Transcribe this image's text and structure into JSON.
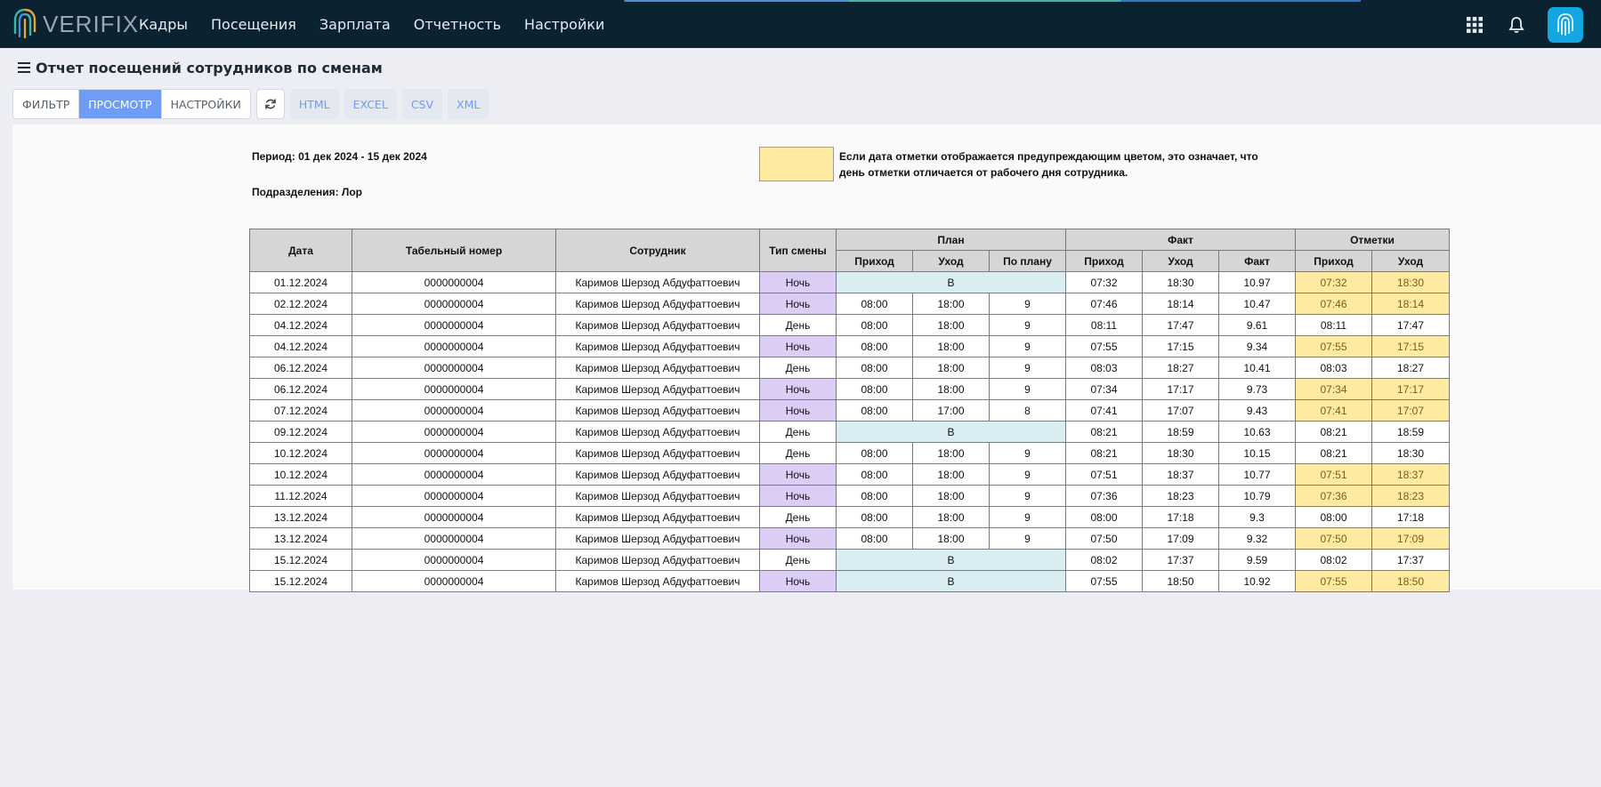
{
  "app": {
    "logo_text": "VERIFIX",
    "nav": [
      "Кадры",
      "Посещения",
      "Зарплата",
      "Отчетность",
      "Настройки"
    ],
    "icons": [
      "apps-grid-icon",
      "bell-icon",
      "fingerprint-icon"
    ]
  },
  "page": {
    "title": "Отчет посещений сотрудников по сменам",
    "tabs": [
      "ФИЛЬТР",
      "ПРОСМОТР",
      "НАСТРОЙКИ"
    ],
    "active_tab": "ПРОСМОТР",
    "exports": [
      "HTML",
      "EXCEL",
      "CSV",
      "XML"
    ]
  },
  "report": {
    "period": "Период: 01 дек 2024 - 15 дек 2024",
    "department": "Подразделения: Лор",
    "legend_text": "Если дата отметки отображается предупреждающим цветом, это означает, что день отметки отличается от рабочего дня сотрудника.",
    "colors": {
      "warning": "#ffeaa1",
      "night_shift": "#dccdf7",
      "day_off": "#d9edf3",
      "header": "#d6d6d6"
    },
    "headers": {
      "date": "Дата",
      "tab_number": "Табельный номер",
      "employee": "Сотрудник",
      "shift_type": "Тип смены",
      "plan": "План",
      "fact": "Факт",
      "marks": "Отметки",
      "in": "Приход",
      "out": "Уход",
      "planned": "По плану",
      "fact_hours": "Факт"
    },
    "rows": [
      {
        "date": "01.12.2024",
        "tab": "0000000004",
        "emp": "Каримов Шерзод Абдуфаттоевич",
        "shift": "Ночь",
        "plan_in": "",
        "plan_out": "",
        "plan_hours": "",
        "off": "В",
        "fact_in": "07:32",
        "fact_out": "18:30",
        "fact_hours": "10.97",
        "mark_in": "07:32",
        "mark_out": "18:30",
        "warn": true
      },
      {
        "date": "02.12.2024",
        "tab": "0000000004",
        "emp": "Каримов Шерзод Абдуфаттоевич",
        "shift": "Ночь",
        "plan_in": "08:00",
        "plan_out": "18:00",
        "plan_hours": "9",
        "off": "",
        "fact_in": "07:46",
        "fact_out": "18:14",
        "fact_hours": "10.47",
        "mark_in": "07:46",
        "mark_out": "18:14",
        "warn": true
      },
      {
        "date": "04.12.2024",
        "tab": "0000000004",
        "emp": "Каримов Шерзод Абдуфаттоевич",
        "shift": "День",
        "plan_in": "08:00",
        "plan_out": "18:00",
        "plan_hours": "9",
        "off": "",
        "fact_in": "08:11",
        "fact_out": "17:47",
        "fact_hours": "9.61",
        "mark_in": "08:11",
        "mark_out": "17:47",
        "warn": false
      },
      {
        "date": "04.12.2024",
        "tab": "0000000004",
        "emp": "Каримов Шерзод Абдуфаттоевич",
        "shift": "Ночь",
        "plan_in": "08:00",
        "plan_out": "18:00",
        "plan_hours": "9",
        "off": "",
        "fact_in": "07:55",
        "fact_out": "17:15",
        "fact_hours": "9.34",
        "mark_in": "07:55",
        "mark_out": "17:15",
        "warn": true
      },
      {
        "date": "06.12.2024",
        "tab": "0000000004",
        "emp": "Каримов Шерзод Абдуфаттоевич",
        "shift": "День",
        "plan_in": "08:00",
        "plan_out": "18:00",
        "plan_hours": "9",
        "off": "",
        "fact_in": "08:03",
        "fact_out": "18:27",
        "fact_hours": "10.41",
        "mark_in": "08:03",
        "mark_out": "18:27",
        "warn": false
      },
      {
        "date": "06.12.2024",
        "tab": "0000000004",
        "emp": "Каримов Шерзод Абдуфаттоевич",
        "shift": "Ночь",
        "plan_in": "08:00",
        "plan_out": "18:00",
        "plan_hours": "9",
        "off": "",
        "fact_in": "07:34",
        "fact_out": "17:17",
        "fact_hours": "9.73",
        "mark_in": "07:34",
        "mark_out": "17:17",
        "warn": true
      },
      {
        "date": "07.12.2024",
        "tab": "0000000004",
        "emp": "Каримов Шерзод Абдуфаттоевич",
        "shift": "Ночь",
        "plan_in": "08:00",
        "plan_out": "17:00",
        "plan_hours": "8",
        "off": "",
        "fact_in": "07:41",
        "fact_out": "17:07",
        "fact_hours": "9.43",
        "mark_in": "07:41",
        "mark_out": "17:07",
        "warn": true
      },
      {
        "date": "09.12.2024",
        "tab": "0000000004",
        "emp": "Каримов Шерзод Абдуфаттоевич",
        "shift": "День",
        "plan_in": "",
        "plan_out": "",
        "plan_hours": "",
        "off": "В",
        "fact_in": "08:21",
        "fact_out": "18:59",
        "fact_hours": "10.63",
        "mark_in": "08:21",
        "mark_out": "18:59",
        "warn": false
      },
      {
        "date": "10.12.2024",
        "tab": "0000000004",
        "emp": "Каримов Шерзод Абдуфаттоевич",
        "shift": "День",
        "plan_in": "08:00",
        "plan_out": "18:00",
        "plan_hours": "9",
        "off": "",
        "fact_in": "08:21",
        "fact_out": "18:30",
        "fact_hours": "10.15",
        "mark_in": "08:21",
        "mark_out": "18:30",
        "warn": false
      },
      {
        "date": "10.12.2024",
        "tab": "0000000004",
        "emp": "Каримов Шерзод Абдуфаттоевич",
        "shift": "Ночь",
        "plan_in": "08:00",
        "plan_out": "18:00",
        "plan_hours": "9",
        "off": "",
        "fact_in": "07:51",
        "fact_out": "18:37",
        "fact_hours": "10.77",
        "mark_in": "07:51",
        "mark_out": "18:37",
        "warn": true
      },
      {
        "date": "11.12.2024",
        "tab": "0000000004",
        "emp": "Каримов Шерзод Абдуфаттоевич",
        "shift": "Ночь",
        "plan_in": "08:00",
        "plan_out": "18:00",
        "plan_hours": "9",
        "off": "",
        "fact_in": "07:36",
        "fact_out": "18:23",
        "fact_hours": "10.79",
        "mark_in": "07:36",
        "mark_out": "18:23",
        "warn": true
      },
      {
        "date": "13.12.2024",
        "tab": "0000000004",
        "emp": "Каримов Шерзод Абдуфаттоевич",
        "shift": "День",
        "plan_in": "08:00",
        "plan_out": "18:00",
        "plan_hours": "9",
        "off": "",
        "fact_in": "08:00",
        "fact_out": "17:18",
        "fact_hours": "9.3",
        "mark_in": "08:00",
        "mark_out": "17:18",
        "warn": false
      },
      {
        "date": "13.12.2024",
        "tab": "0000000004",
        "emp": "Каримов Шерзод Абдуфаттоевич",
        "shift": "Ночь",
        "plan_in": "08:00",
        "plan_out": "18:00",
        "plan_hours": "9",
        "off": "",
        "fact_in": "07:50",
        "fact_out": "17:09",
        "fact_hours": "9.32",
        "mark_in": "07:50",
        "mark_out": "17:09",
        "warn": true
      },
      {
        "date": "15.12.2024",
        "tab": "0000000004",
        "emp": "Каримов Шерзод Абдуфаттоевич",
        "shift": "День",
        "plan_in": "",
        "plan_out": "",
        "plan_hours": "",
        "off": "В",
        "fact_in": "08:02",
        "fact_out": "17:37",
        "fact_hours": "9.59",
        "mark_in": "08:02",
        "mark_out": "17:37",
        "warn": false
      },
      {
        "date": "15.12.2024",
        "tab": "0000000004",
        "emp": "Каримов Шерзод Абдуфаттоевич",
        "shift": "Ночь",
        "plan_in": "",
        "plan_out": "",
        "plan_hours": "",
        "off": "В",
        "fact_in": "07:55",
        "fact_out": "18:50",
        "fact_hours": "10.92",
        "mark_in": "07:55",
        "mark_out": "18:50",
        "warn": true
      }
    ]
  }
}
